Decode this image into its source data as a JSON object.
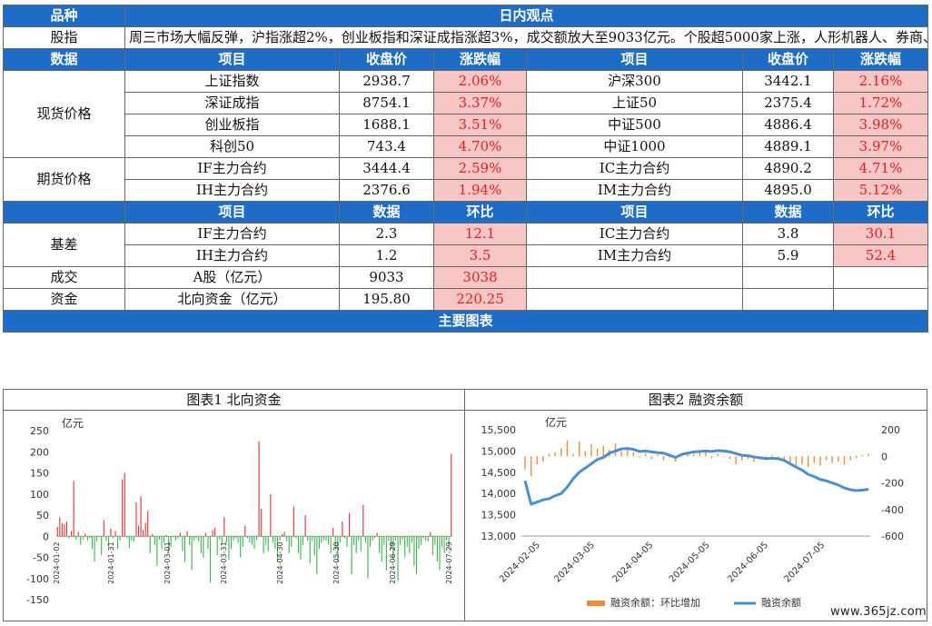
{
  "header": {
    "col1": "品种",
    "col2": "日内观点"
  },
  "view": {
    "category": "股指",
    "text": "周三市场大幅反弹，沪指涨超2%，创业板指和深证成指涨超3%，成交额放大至9033亿元。个股超5000家上涨，人形机器人、券商、医疗服务领涨。"
  },
  "data_header": {
    "label": "数据",
    "item": "项目",
    "close": "收盘价",
    "change": "涨跌幅"
  },
  "spot": {
    "category": "现货价格",
    "rows": [
      {
        "l_item": "上证指数",
        "l_close": "2938.7",
        "l_chg": "2.06%",
        "r_item": "沪深300",
        "r_close": "3442.1",
        "r_chg": "2.16%"
      },
      {
        "l_item": "深证成指",
        "l_close": "8754.1",
        "l_chg": "3.37%",
        "r_item": "上证50",
        "r_close": "2375.4",
        "r_chg": "1.72%"
      },
      {
        "l_item": "创业板指",
        "l_close": "1688.1",
        "l_chg": "3.51%",
        "r_item": "中证500",
        "r_close": "4886.4",
        "r_chg": "3.98%"
      },
      {
        "l_item": "科创50",
        "l_close": "743.4",
        "l_chg": "4.70%",
        "r_item": "中证1000",
        "r_close": "4889.1",
        "r_chg": "3.97%"
      }
    ]
  },
  "futures": {
    "category": "期货价格",
    "rows": [
      {
        "l_item": "IF主力合约",
        "l_close": "3444.4",
        "l_chg": "2.59%",
        "r_item": "IC主力合约",
        "r_close": "4890.2",
        "r_chg": "4.71%"
      },
      {
        "l_item": "IH主力合约",
        "l_close": "2376.6",
        "l_chg": "1.94%",
        "r_item": "IM主力合约",
        "r_close": "4895.0",
        "r_chg": "5.12%"
      }
    ]
  },
  "data_header2": {
    "item": "项目",
    "value": "数据",
    "mom": "环比"
  },
  "basis": {
    "category": "基差",
    "rows": [
      {
        "l_item": "IF主力合约",
        "l_val": "2.3",
        "l_mom": "12.1",
        "r_item": "IC主力合约",
        "r_val": "3.8",
        "r_mom": "30.1"
      },
      {
        "l_item": "IH主力合约",
        "l_val": "1.2",
        "l_mom": "3.5",
        "r_item": "IM主力合约",
        "r_val": "5.9",
        "r_mom": "52.4"
      }
    ]
  },
  "turnover": {
    "category": "成交",
    "item": "A股（亿元）",
    "value": "9033",
    "mom": "3038"
  },
  "funds": {
    "category": "资金",
    "item": "北向资金（亿元）",
    "value": "195.80",
    "mom": "220.25"
  },
  "charts_section": {
    "title": "主要图表"
  },
  "chart_data": [
    {
      "type": "bar",
      "title": "图表1 北向资金",
      "ylabel": "亿元",
      "ylim": [
        -150,
        250
      ],
      "yticks": [
        250,
        200,
        150,
        100,
        50,
        0,
        -50,
        -100,
        -150
      ],
      "xticks": [
        "2024-01-02",
        "2024-01-31",
        "2024-03-01",
        "2024-03-31",
        "2024-04-30",
        "2024-05-30",
        "2024-06-29",
        "2024-07-29"
      ],
      "x_range": [
        "2024-01-02",
        "2024-07-31"
      ],
      "positive_color": "#e03030",
      "negative_color": "#3cb44b",
      "values": [
        22,
        45,
        30,
        28,
        35,
        -5,
        12,
        130,
        -8,
        10,
        -20,
        -8,
        6,
        -10,
        -5,
        -30,
        -60,
        -12,
        -2,
        -45,
        38,
        -10,
        -25,
        18,
        -5,
        12,
        -30,
        -10,
        135,
        150,
        -5,
        -28,
        -10,
        -12,
        80,
        25,
        95,
        15,
        32,
        60,
        -40,
        5,
        -20,
        -70,
        -8,
        -30,
        -15,
        3,
        -40,
        -25,
        -2,
        -10,
        -5,
        8,
        -35,
        -60,
        12,
        -20,
        -80,
        -10,
        -5,
        -12,
        -40,
        -50,
        8,
        -30,
        -110,
        15,
        20,
        -45,
        -8,
        -20,
        45,
        -15,
        -55,
        -30,
        -10,
        -5,
        -15,
        -50,
        -25,
        25,
        -5,
        -15,
        -20,
        -30,
        -8,
        225,
        65,
        -40,
        -20,
        -35,
        100,
        -15,
        -30,
        -60,
        -10,
        5,
        10,
        -12,
        -40,
        -25,
        70,
        -5,
        -40,
        -55,
        -20,
        50,
        -10,
        -65,
        -12,
        -45,
        -90,
        -30,
        -15,
        -8,
        -10,
        -20,
        -40,
        20,
        -30,
        -60,
        -15,
        35,
        -5,
        -25,
        55,
        -90,
        -20,
        -40,
        -10,
        -35,
        75,
        -15,
        -100,
        -25,
        -10,
        -5,
        8,
        -40,
        -60,
        -20,
        -80,
        -12,
        -30,
        -55,
        -10,
        -105,
        -20,
        -8,
        -50,
        -25,
        -40,
        -15,
        -70,
        -90,
        -30,
        -20,
        -5,
        -10,
        -12,
        10,
        -45,
        -20,
        -60,
        -80,
        -25,
        -40,
        -10,
        -30,
        195
      ]
    },
    {
      "type": "line",
      "title": "图表2 融资余额",
      "ylabel": "亿元",
      "ylim_left": [
        13000,
        15500
      ],
      "yticks_left": [
        15500,
        15000,
        14500,
        14000,
        13500,
        13000
      ],
      "ylim_right": [
        -600,
        200
      ],
      "yticks_right": [
        200,
        0,
        -200,
        -400,
        -600
      ],
      "xticks": [
        "2024-02-05",
        "2024-03-05",
        "2024-04-05",
        "2024-05-05",
        "2024-06-05",
        "2024-07-05"
      ],
      "x_range": [
        "2024-01-28",
        "2024-07-31"
      ],
      "legend": [
        "融资余额：环比增加",
        "融资余额"
      ],
      "legend_position": "bottom",
      "bar_color": "#f08a3c",
      "line_color": "#4a8fd4",
      "line_values": [
        14300,
        13750,
        13800,
        13850,
        13880,
        13950,
        14000,
        14150,
        14350,
        14500,
        14600,
        14700,
        14800,
        14850,
        14950,
        15000,
        15050,
        15060,
        15040,
        14990,
        15000,
        14980,
        14960,
        14950,
        14900,
        14850,
        14920,
        14950,
        14980,
        14990,
        15000,
        14990,
        15010,
        15000,
        14980,
        14940,
        14900,
        14890,
        14860,
        14840,
        14820,
        14830,
        14820,
        14780,
        14700,
        14620,
        14550,
        14450,
        14400,
        14330,
        14300,
        14250,
        14200,
        14130,
        14090,
        14070,
        14080,
        14100
      ],
      "bar_values": [
        -100,
        -150,
        -60,
        -40,
        20,
        30,
        60,
        120,
        20,
        110,
        40,
        90,
        60,
        80,
        50,
        100,
        40,
        70,
        30,
        -10,
        20,
        -20,
        10,
        -30,
        -10,
        -40,
        10,
        20,
        20,
        30,
        30,
        -15,
        20,
        -5,
        -20,
        -60,
        -30,
        -20,
        -40,
        -25,
        -20,
        10,
        -10,
        -40,
        -60,
        -70,
        -60,
        -80,
        -50,
        -70,
        -30,
        -50,
        -40,
        -60,
        -30,
        -15,
        10,
        20
      ]
    }
  ],
  "watermark": "www.365jz.com"
}
